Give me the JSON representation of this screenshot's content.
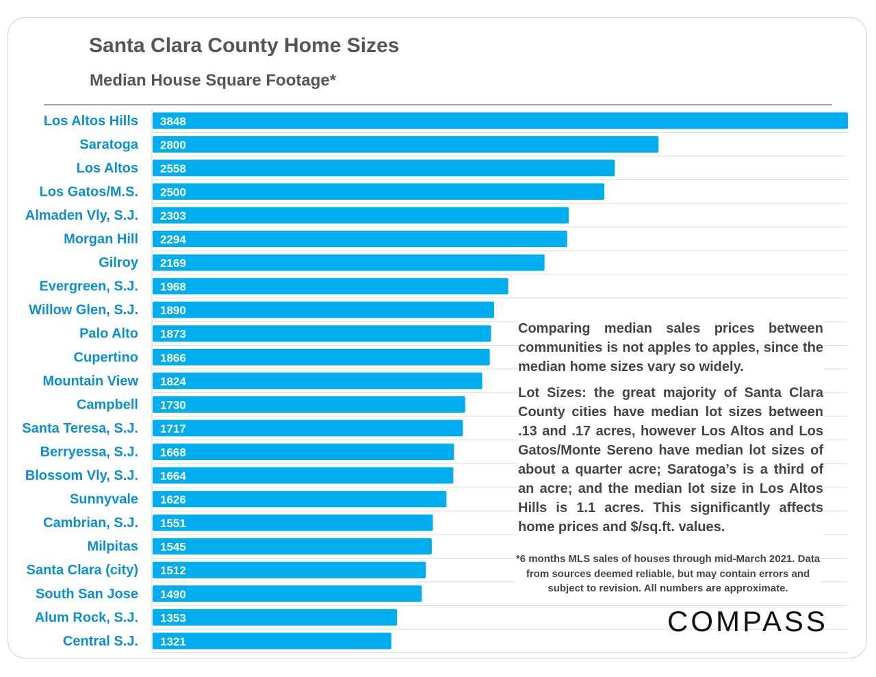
{
  "header": {
    "title": "Santa Clara County Home Sizes",
    "subtitle": "Median House Square Footage*"
  },
  "notes": {
    "comparison": "Comparing median sales prices between communities is not apples to apples, since the median home sizes vary so widely.",
    "lot_sizes": "Lot Sizes: the great majority of Santa Clara County cities have median lot sizes between .13 and .17 acres, however Los Altos and Los Gatos/Monte Sereno have median lot sizes of about a quarter acre; Saratoga’s is a third of an acre; and the median lot size in Los Altos Hills is 1.1 acres. This significantly affects home prices and $/sq.ft. values.",
    "footnote": "*6 months MLS sales of houses through mid-March 2021. Data from sources deemed reliable, but may contain errors and subject to revision. All numbers are approximate."
  },
  "brand": {
    "logo_text": "COMPASS"
  },
  "colors": {
    "bar": "#00aeef",
    "category_label": "#0a8fd1",
    "value_label": "#ffffff",
    "gridline": "#dddddd",
    "text": "#555555"
  },
  "chart_data": {
    "type": "bar",
    "orientation": "horizontal",
    "title": "Santa Clara County Home Sizes",
    "subtitle": "Median House Square Footage*",
    "categories": [
      "Los Altos Hills",
      "Saratoga",
      "Los Altos",
      "Los Gatos/M.S.",
      "Almaden Vly, S.J.",
      "Morgan Hill",
      "Gilroy",
      "Evergreen, S.J.",
      "Willow Glen, S.J.",
      "Palo Alto",
      "Cupertino",
      "Mountain View",
      "Campbell",
      "Santa Teresa, S.J.",
      "Berryessa, S.J.",
      "Blossom Vly, S.J.",
      "Sunnyvale",
      "Cambrian, S.J.",
      "Milpitas",
      "Santa Clara (city)",
      "South San Jose",
      "Alum Rock, S.J.",
      "Central S.J."
    ],
    "values": [
      3848,
      2800,
      2558,
      2500,
      2303,
      2294,
      2169,
      1968,
      1890,
      1873,
      1866,
      1824,
      1730,
      1717,
      1668,
      1664,
      1626,
      1551,
      1545,
      1512,
      1490,
      1353,
      1321
    ],
    "xlim": [
      0,
      3848
    ],
    "data_labels": true,
    "grid": "horizontal",
    "legend": "none"
  }
}
